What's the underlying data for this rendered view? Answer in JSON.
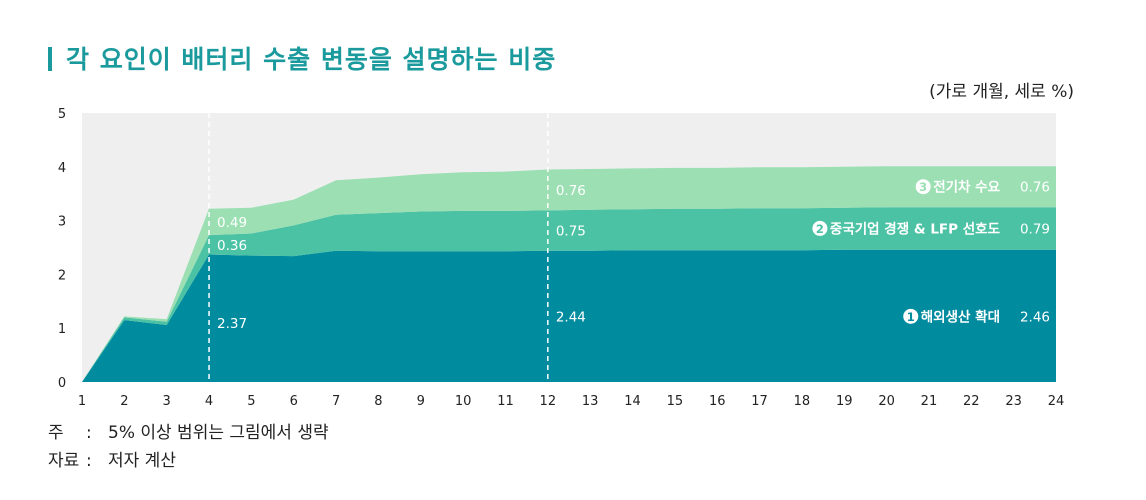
{
  "header": {
    "title": "각 요인이 배터리 수출 변동을 설명하는 비중",
    "unit": "(가로 개월, 세로 %)"
  },
  "notes": [
    {
      "key": "주",
      "sep": ":",
      "text": "5% 이상 범위는 그림에서 생략"
    },
    {
      "key": "자료",
      "sep": ":",
      "text": "저자 계산"
    }
  ],
  "colors": {
    "plot_bg": "#efefef",
    "series": [
      "#008b9f",
      "#4cc2a5",
      "#9bdfb3"
    ],
    "label_light": "#ffffff",
    "legend_text": "#ffffff"
  },
  "chart_data": {
    "type": "area",
    "stacked": true,
    "x": [
      1,
      2,
      3,
      4,
      5,
      6,
      7,
      8,
      9,
      10,
      11,
      12,
      13,
      14,
      15,
      16,
      17,
      18,
      19,
      20,
      21,
      22,
      23,
      24
    ],
    "xlim": [
      1,
      24
    ],
    "ylim": [
      0,
      5
    ],
    "yticks": [
      0,
      1,
      2,
      3,
      4,
      5
    ],
    "xtick_labels": [
      "1",
      "2",
      "3",
      "4",
      "5",
      "6",
      "7",
      "8",
      "9",
      "10",
      "11",
      "12",
      "13",
      "14",
      "15",
      "16",
      "17",
      "18",
      "19",
      "20",
      "21",
      "22",
      "23",
      "24"
    ],
    "ytick_labels": [
      "0",
      "1",
      "2",
      "3",
      "4",
      "5"
    ],
    "reference_lines_x": [
      4,
      12
    ],
    "series": [
      {
        "name": "해외생산 확대",
        "badge": "1",
        "values": [
          0,
          1.15,
          1.06,
          2.37,
          2.35,
          2.34,
          2.44,
          2.43,
          2.43,
          2.43,
          2.43,
          2.44,
          2.44,
          2.45,
          2.45,
          2.45,
          2.45,
          2.45,
          2.46,
          2.46,
          2.46,
          2.46,
          2.46,
          2.46
        ]
      },
      {
        "name": "중국기업 경쟁 & LFP 선호도",
        "badge": "2",
        "values": [
          0,
          0.05,
          0.06,
          0.36,
          0.41,
          0.57,
          0.67,
          0.71,
          0.74,
          0.75,
          0.75,
          0.75,
          0.76,
          0.76,
          0.77,
          0.77,
          0.78,
          0.78,
          0.78,
          0.79,
          0.79,
          0.79,
          0.79,
          0.79
        ]
      },
      {
        "name": "전기차 수요",
        "badge": "3",
        "values": [
          0,
          0.02,
          0.05,
          0.49,
          0.48,
          0.48,
          0.64,
          0.66,
          0.69,
          0.72,
          0.73,
          0.76,
          0.76,
          0.76,
          0.76,
          0.76,
          0.76,
          0.76,
          0.76,
          0.76,
          0.76,
          0.76,
          0.76,
          0.76
        ]
      }
    ],
    "data_labels": [
      {
        "series": 0,
        "x": 4,
        "text": "2.37"
      },
      {
        "series": 1,
        "x": 4,
        "text": "0.36"
      },
      {
        "series": 2,
        "x": 4,
        "text": "0.49"
      },
      {
        "series": 0,
        "x": 12,
        "text": "2.44"
      },
      {
        "series": 1,
        "x": 12,
        "text": "0.75"
      },
      {
        "series": 2,
        "x": 12,
        "text": "0.76"
      },
      {
        "series": 0,
        "x": 24,
        "text": "2.46"
      },
      {
        "series": 1,
        "x": 24,
        "text": "0.79"
      },
      {
        "series": 2,
        "x": 24,
        "text": "0.76"
      }
    ]
  }
}
